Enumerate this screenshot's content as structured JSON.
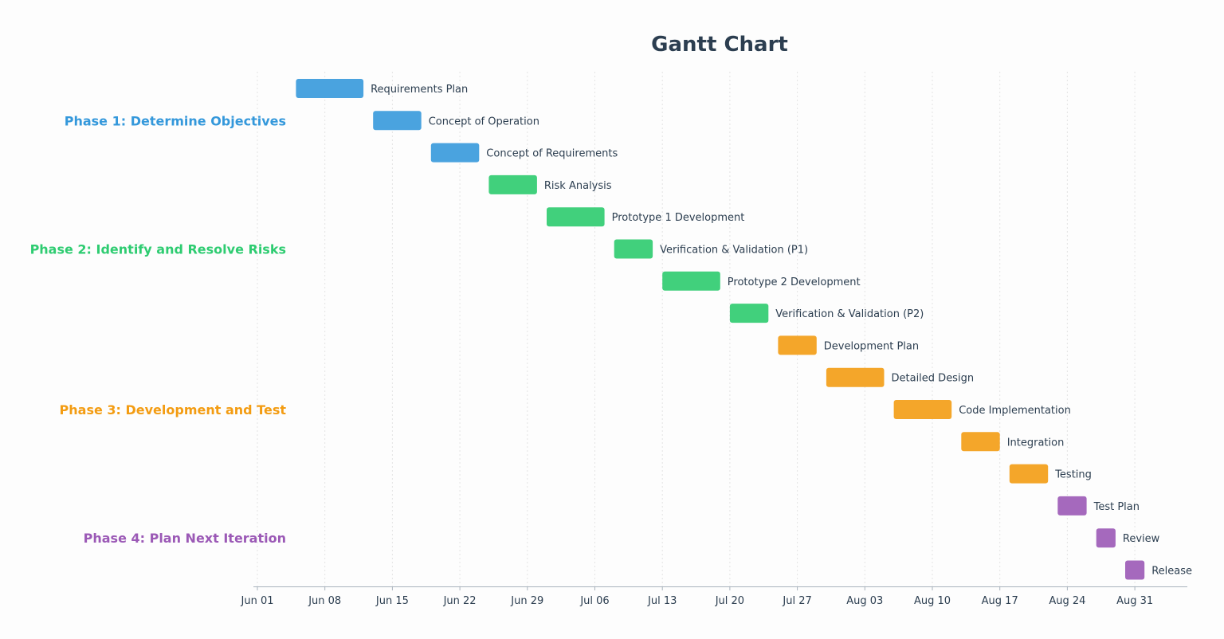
{
  "chart_data": {
    "type": "gantt",
    "title": "Gantt Chart",
    "xlim": [
      "2025-06-01",
      "2025-09-06"
    ],
    "x_ticks": [
      {
        "date": "2025-06-01",
        "label": "Jun 01"
      },
      {
        "date": "2025-06-08",
        "label": "Jun 08"
      },
      {
        "date": "2025-06-15",
        "label": "Jun 15"
      },
      {
        "date": "2025-06-22",
        "label": "Jun 22"
      },
      {
        "date": "2025-06-29",
        "label": "Jun 29"
      },
      {
        "date": "2025-07-06",
        "label": "Jul 06"
      },
      {
        "date": "2025-07-13",
        "label": "Jul 13"
      },
      {
        "date": "2025-07-20",
        "label": "Jul 20"
      },
      {
        "date": "2025-07-27",
        "label": "Jul 27"
      },
      {
        "date": "2025-08-03",
        "label": "Aug 03"
      },
      {
        "date": "2025-08-10",
        "label": "Aug 10"
      },
      {
        "date": "2025-08-17",
        "label": "Aug 17"
      },
      {
        "date": "2025-08-24",
        "label": "Aug 24"
      },
      {
        "date": "2025-08-31",
        "label": "Aug 31"
      }
    ],
    "grid": true,
    "phases": [
      {
        "name": "Phase 1: Determine Objectives",
        "color": "#3498db",
        "bar_color": "#4aa3df"
      },
      {
        "name": "Phase 2: Identify and Resolve Risks",
        "color": "#2ecc71",
        "bar_color": "#41d07c"
      },
      {
        "name": "Phase 3: Development and Test",
        "color": "#f39c12",
        "bar_color": "#f4a62a"
      },
      {
        "name": "Phase 4: Plan Next Iteration",
        "color": "#9b59b6",
        "bar_color": "#a569bd"
      }
    ],
    "tasks": [
      {
        "name": "Requirements Plan",
        "phase": 0,
        "start": "2025-06-05",
        "end": "2025-06-12"
      },
      {
        "name": "Concept of Operation",
        "phase": 0,
        "start": "2025-06-13",
        "end": "2025-06-18"
      },
      {
        "name": "Concept of Requirements",
        "phase": 0,
        "start": "2025-06-19",
        "end": "2025-06-24"
      },
      {
        "name": "Risk Analysis",
        "phase": 1,
        "start": "2025-06-25",
        "end": "2025-06-30"
      },
      {
        "name": "Prototype 1 Development",
        "phase": 1,
        "start": "2025-07-01",
        "end": "2025-07-07"
      },
      {
        "name": "Verification & Validation (P1)",
        "phase": 1,
        "start": "2025-07-08",
        "end": "2025-07-12"
      },
      {
        "name": "Prototype 2 Development",
        "phase": 1,
        "start": "2025-07-13",
        "end": "2025-07-19"
      },
      {
        "name": "Verification & Validation (P2)",
        "phase": 1,
        "start": "2025-07-20",
        "end": "2025-07-24"
      },
      {
        "name": "Development Plan",
        "phase": 2,
        "start": "2025-07-25",
        "end": "2025-07-29"
      },
      {
        "name": "Detailed Design",
        "phase": 2,
        "start": "2025-07-30",
        "end": "2025-08-05"
      },
      {
        "name": "Code Implementation",
        "phase": 2,
        "start": "2025-08-06",
        "end": "2025-08-12"
      },
      {
        "name": "Integration",
        "phase": 2,
        "start": "2025-08-13",
        "end": "2025-08-17"
      },
      {
        "name": "Testing",
        "phase": 2,
        "start": "2025-08-18",
        "end": "2025-08-22"
      },
      {
        "name": "Test Plan",
        "phase": 3,
        "start": "2025-08-23",
        "end": "2025-08-26"
      },
      {
        "name": "Review",
        "phase": 3,
        "start": "2025-08-27",
        "end": "2025-08-29"
      },
      {
        "name": "Release",
        "phase": 3,
        "start": "2025-08-30",
        "end": "2025-09-01"
      }
    ]
  }
}
